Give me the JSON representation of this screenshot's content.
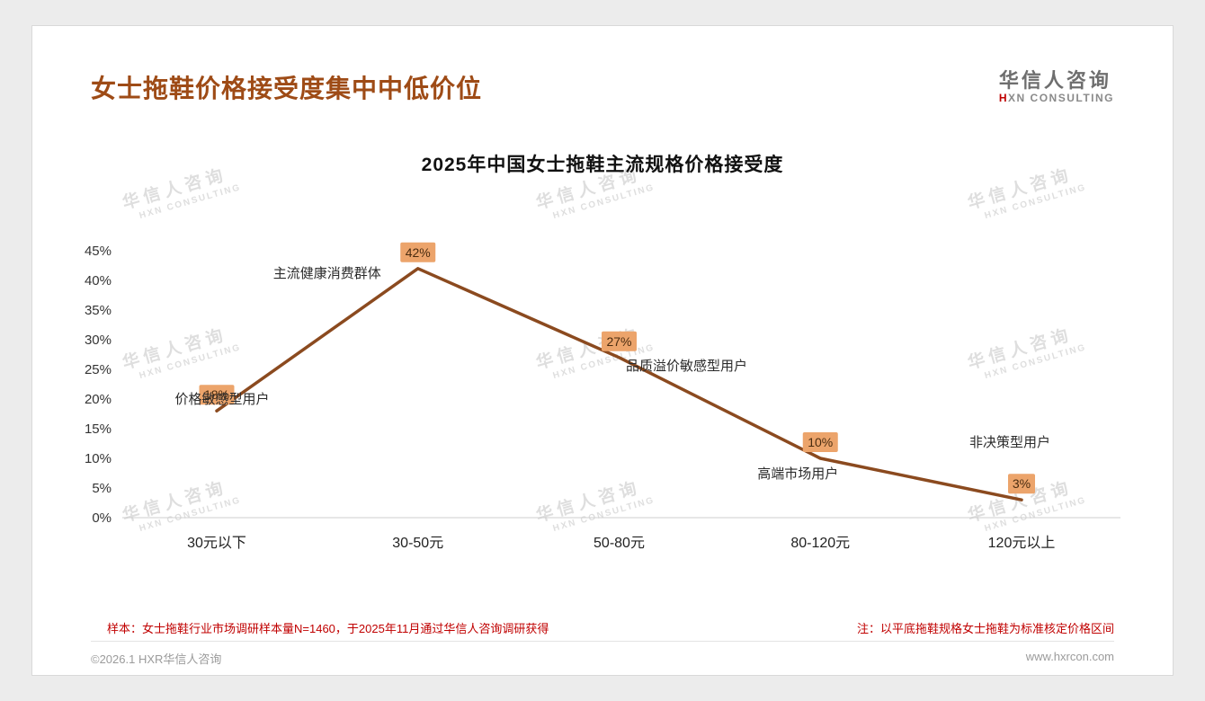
{
  "page": {
    "header": {
      "title": "女士拖鞋价格接受度集中中低价位",
      "logo": {
        "cn": "华信人咨询",
        "en_prefix": "H",
        "en_rest": "XN CONSULTING"
      }
    },
    "footer": {
      "sample_note": "样本：女士拖鞋行业市场调研样本量N=1460，于2025年11月通过华信人咨询调研获得",
      "price_note": "注：以平底拖鞋规格女士拖鞋为标准核定价格区间",
      "copyright": "©2026.1 HXR华信人咨询",
      "website": "www.hxrcon.com"
    },
    "watermark": {
      "cn": "华信人咨询",
      "en": "HXN CONSULTING"
    }
  },
  "chart_data": {
    "type": "line",
    "title": "2025年中国女士拖鞋主流规格价格接受度",
    "categories": [
      "30元以下",
      "30-50元",
      "50-80元",
      "80-120元",
      "120元以上"
    ],
    "values": [
      18,
      42,
      27,
      10,
      3
    ],
    "value_labels": [
      "18%",
      "42%",
      "27%",
      "10%",
      "3%"
    ],
    "annotations": [
      "价格敏感型用户",
      "主流健康消费群体",
      "品质溢价敏感型用户",
      "高端市场用户",
      "非决策型用户"
    ],
    "xlabel": "",
    "ylabel": "",
    "ylim": [
      0,
      45
    ],
    "ytick_step": 5,
    "grid": false,
    "legend": "none",
    "colors": {
      "line": "#8b4a1f",
      "label_bg": "#eca46b",
      "title_accent": "#9e4b16",
      "note_red": "#c00000"
    }
  }
}
